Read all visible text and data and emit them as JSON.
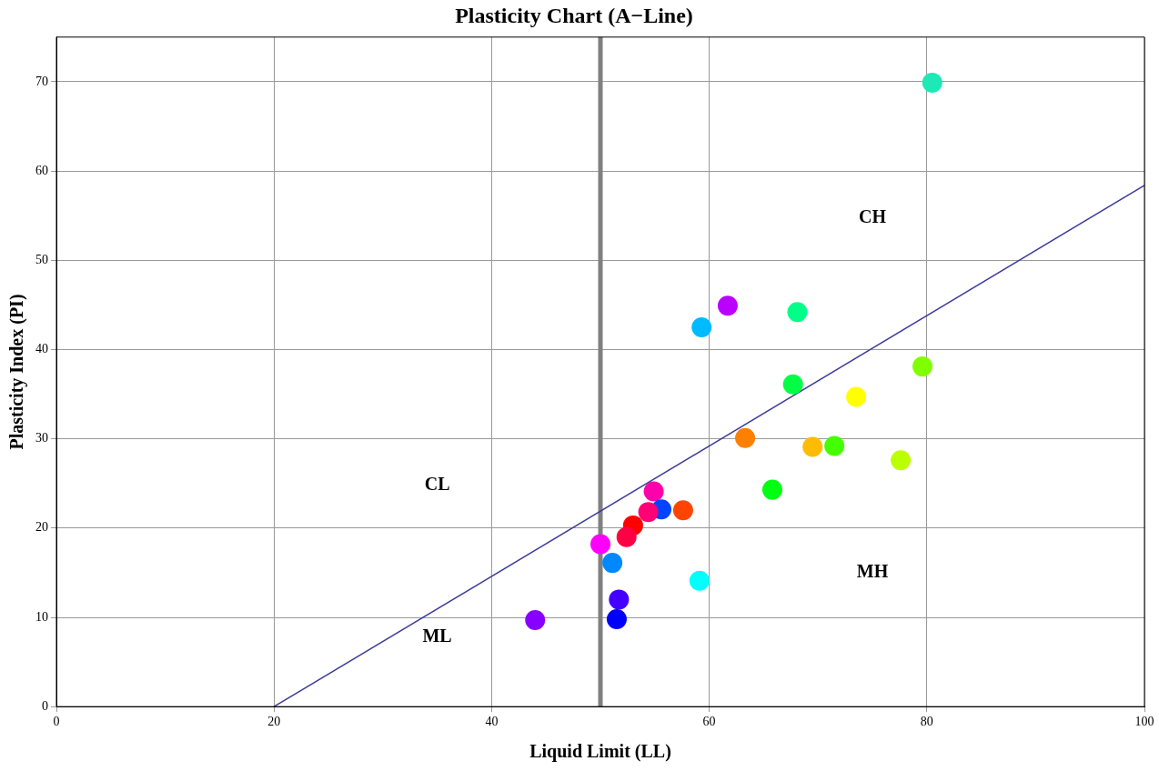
{
  "chart_data": {
    "type": "scatter",
    "title": "Plasticity Chart (A−Line)",
    "xlabel": "Liquid Limit (LL)",
    "ylabel": "Plasticity Index (PI)",
    "xlim": [
      0,
      100
    ],
    "xticks": [
      0,
      20,
      40,
      60,
      80,
      100
    ],
    "ylim": [
      0,
      75
    ],
    "yticks": [
      0,
      10,
      20,
      30,
      40,
      50,
      60,
      70
    ],
    "grid": true,
    "legend": false,
    "marker": "circle",
    "series": [
      {
        "type": "line",
        "x": [
          20,
          100
        ],
        "values": [
          0,
          58.4
        ],
        "color": "#3b3b9b",
        "marker": "none"
      },
      {
        "x": [
          80.5,
          61.7,
          68.1,
          59.3,
          67.7,
          79.6,
          73.5,
          63.3,
          69.5,
          71.5,
          77.6,
          65.8,
          54.9,
          55.6,
          54.4,
          57.6,
          53.0,
          52.4,
          50.0,
          51.1,
          59.1,
          51.7,
          51.5,
          44.0
        ],
        "values": [
          69.9,
          44.9,
          44.2,
          42.5,
          36.1,
          38.1,
          34.7,
          30.1,
          29.1,
          29.2,
          27.6,
          24.3,
          24.1,
          22.1,
          21.8,
          22.0,
          20.3,
          19.0,
          18.2,
          16.1,
          14.1,
          12.0,
          9.8,
          9.7
        ],
        "colors": [
          "#1de9b6",
          "#bb00ff",
          "#00ff88",
          "#00bbff",
          "#00ff44",
          "#80ff00",
          "#ffff00",
          "#ff8000",
          "#ffbb00",
          "#44ff00",
          "#bbff00",
          "#00ff11",
          "#ff00aa",
          "#0044ff",
          "#ff0077",
          "#ff4400",
          "#ff0000",
          "#ff0044",
          "#ff00ff",
          "#0088ff",
          "#00ffff",
          "#4400ff",
          "#0000ff",
          "#8800ff"
        ]
      }
    ],
    "ref_lines": [
      {
        "axis": "x",
        "value": 50,
        "color": "#808080"
      }
    ],
    "annotations": [
      "CL",
      "CH",
      "ML",
      "MH"
    ]
  }
}
